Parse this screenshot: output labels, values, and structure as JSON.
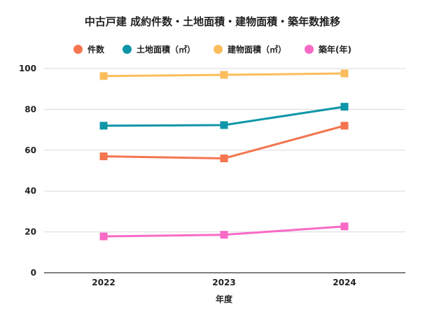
{
  "chart_data": {
    "type": "line",
    "title": "中古戸建 成約件数・土地面積・建物面積・築年数推移",
    "xlabel": "年度",
    "ylabel": "",
    "categories": [
      "2022",
      "2023",
      "2024"
    ],
    "ylim": [
      0,
      100
    ],
    "yticks": [
      0,
      20,
      40,
      60,
      80,
      100
    ],
    "grid": true,
    "legend_position": "top",
    "series": [
      {
        "name": "件数",
        "color": "#f4754f",
        "values": [
          57,
          56,
          72
        ]
      },
      {
        "name": "土地面積（㎡）",
        "color": "#0e96a8",
        "values": [
          72,
          72.3,
          81.3
        ]
      },
      {
        "name": "建物面積（㎡）",
        "color": "#fbbd5b",
        "values": [
          96.3,
          96.9,
          97.6
        ]
      },
      {
        "name": "築年(年)",
        "color": "#f86ac6",
        "values": [
          17.8,
          18.6,
          22.7
        ]
      }
    ]
  }
}
